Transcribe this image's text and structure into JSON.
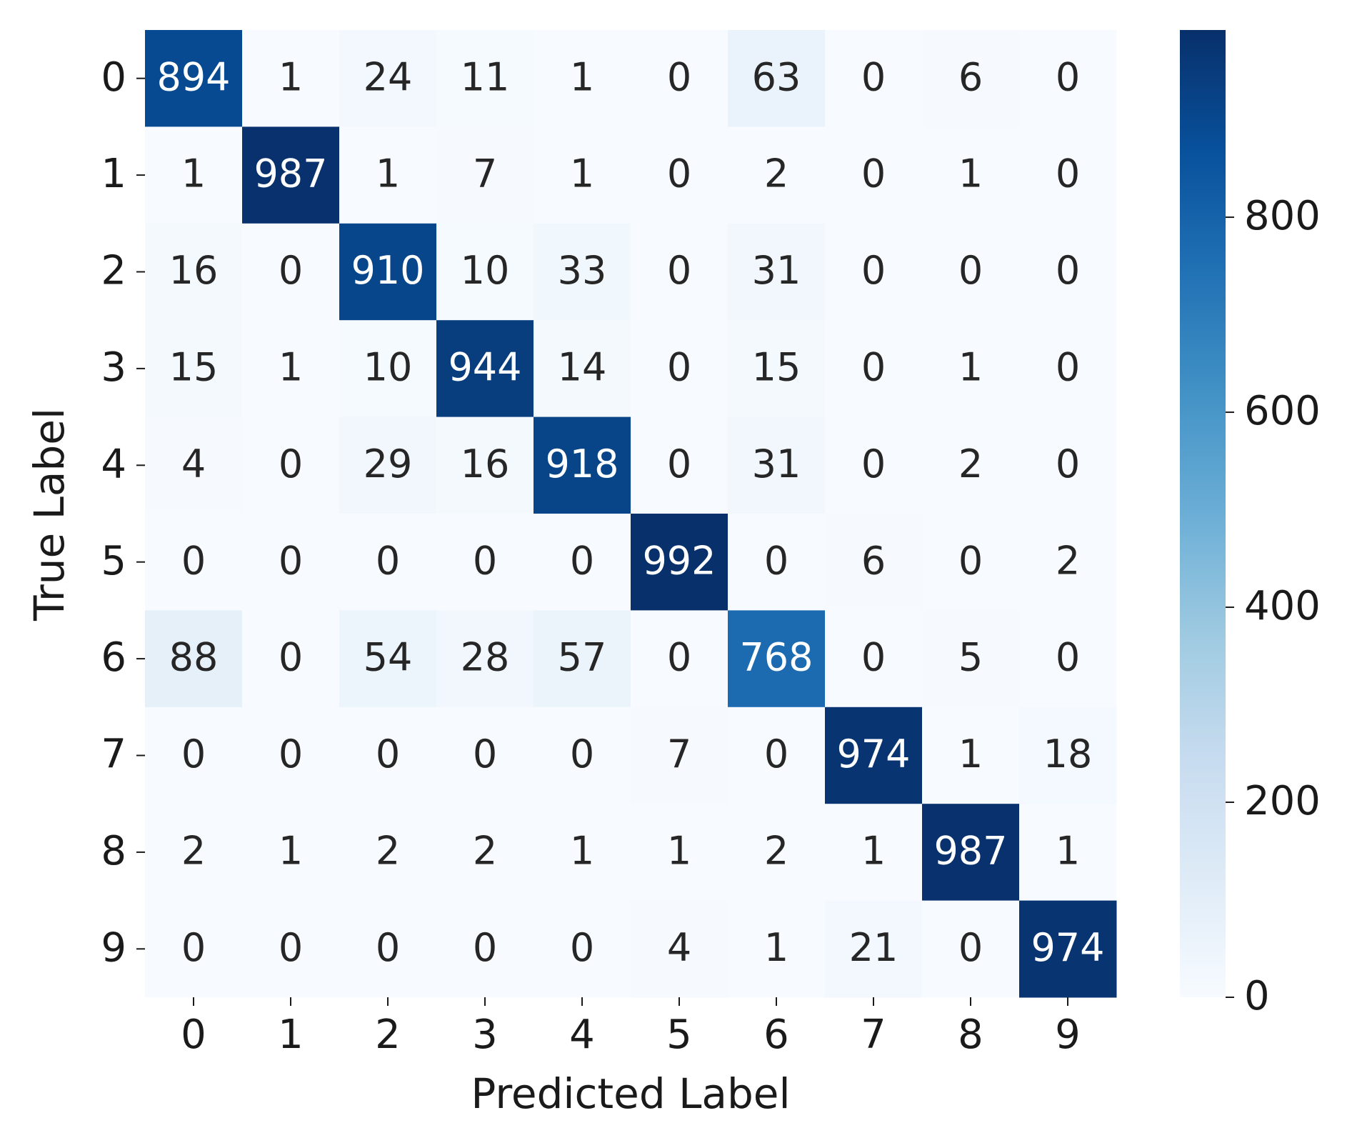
{
  "chart_data": {
    "type": "heatmap",
    "xlabel": "Predicted Label",
    "ylabel": "True Label",
    "x_categories": [
      "0",
      "1",
      "2",
      "3",
      "4",
      "5",
      "6",
      "7",
      "8",
      "9"
    ],
    "y_categories": [
      "0",
      "1",
      "2",
      "3",
      "4",
      "5",
      "6",
      "7",
      "8",
      "9"
    ],
    "values": [
      [
        894,
        1,
        24,
        11,
        1,
        0,
        63,
        0,
        6,
        0
      ],
      [
        1,
        987,
        1,
        7,
        1,
        0,
        2,
        0,
        1,
        0
      ],
      [
        16,
        0,
        910,
        10,
        33,
        0,
        31,
        0,
        0,
        0
      ],
      [
        15,
        1,
        10,
        944,
        14,
        0,
        15,
        0,
        1,
        0
      ],
      [
        4,
        0,
        29,
        16,
        918,
        0,
        31,
        0,
        2,
        0
      ],
      [
        0,
        0,
        0,
        0,
        0,
        992,
        0,
        6,
        0,
        2
      ],
      [
        88,
        0,
        54,
        28,
        57,
        0,
        768,
        0,
        5,
        0
      ],
      [
        0,
        0,
        0,
        0,
        0,
        7,
        0,
        974,
        1,
        18
      ],
      [
        2,
        1,
        2,
        2,
        1,
        1,
        2,
        1,
        987,
        1
      ],
      [
        0,
        0,
        0,
        0,
        0,
        4,
        1,
        21,
        0,
        974
      ]
    ],
    "colormap": "Blues",
    "colors": [
      "#f7fbff",
      "#deebf7",
      "#c6dbef",
      "#9ecae1",
      "#6baed6",
      "#4292c6",
      "#2171b5",
      "#08519c",
      "#08306b"
    ],
    "clim": [
      0,
      992
    ],
    "cticks": [
      0,
      200,
      400,
      600,
      800
    ]
  }
}
